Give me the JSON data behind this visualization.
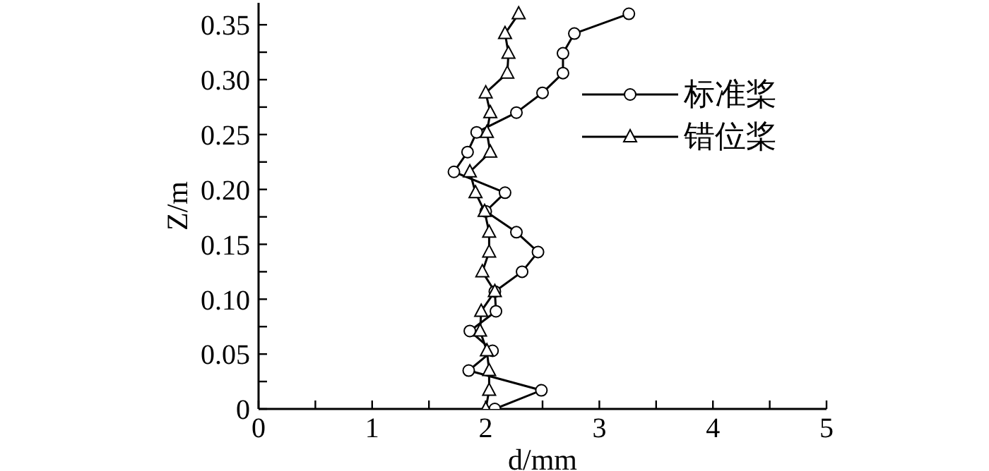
{
  "chart_data": {
    "type": "line",
    "xlabel": "d/mm",
    "ylabel": "Z/m",
    "xlim": [
      0,
      5
    ],
    "xticks": [
      0,
      {
        "value": 0.5,
        "label": null
      },
      1,
      {
        "value": 1.5,
        "label": null
      },
      2,
      {
        "value": 2.5,
        "label": null
      },
      3,
      {
        "value": 3.5,
        "label": null
      },
      4,
      {
        "value": 4.5,
        "label": null
      },
      5
    ],
    "ylim": [
      0,
      0.37
    ],
    "yticks": [
      0,
      {
        "value": 0.025,
        "label": null
      },
      {
        "value": 0.05,
        "label": "0.05"
      },
      {
        "value": 0.075,
        "label": null
      },
      {
        "value": 0.1,
        "label": "0.10"
      },
      {
        "value": 0.125,
        "label": null
      },
      {
        "value": 0.15,
        "label": "0.15"
      },
      {
        "value": 0.175,
        "label": null
      },
      {
        "value": 0.2,
        "label": "0.20"
      },
      {
        "value": 0.225,
        "label": null
      },
      {
        "value": 0.25,
        "label": "0.25"
      },
      {
        "value": 0.275,
        "label": null
      },
      {
        "value": 0.3,
        "label": "0.30"
      },
      {
        "value": 0.325,
        "label": null
      },
      {
        "value": 0.35,
        "label": "0.35"
      }
    ],
    "grid": false,
    "legend": "top right",
    "line_style": "solid",
    "series": [
      {
        "name": "标准桨",
        "color": "#000000",
        "marker": "circle",
        "x": [
          2.08,
          2.49,
          1.85,
          2.06,
          1.86,
          2.09,
          2.08,
          2.32,
          2.46,
          2.27,
          2.0,
          2.17,
          1.72,
          1.84,
          1.92,
          2.27,
          2.5,
          2.68,
          2.68,
          2.78,
          3.26
        ],
        "values": [
          0,
          0.017,
          0.035,
          0.053,
          0.071,
          0.089,
          0.107,
          0.125,
          0.143,
          0.161,
          0.18,
          0.197,
          0.216,
          0.234,
          0.252,
          0.27,
          0.288,
          0.306,
          0.324,
          0.342,
          0.36
        ]
      },
      {
        "name": "错位桨",
        "color": "#000000",
        "marker": "triangle",
        "x": [
          2.0,
          2.03,
          2.03,
          2.01,
          1.95,
          1.96,
          2.08,
          1.97,
          2.03,
          2.03,
          1.99,
          1.91,
          1.86,
          2.04,
          2.01,
          2.04,
          2.0,
          2.19,
          2.2,
          2.17,
          2.29
        ],
        "values": [
          0,
          0.017,
          0.035,
          0.053,
          0.071,
          0.089,
          0.107,
          0.125,
          0.143,
          0.161,
          0.18,
          0.197,
          0.216,
          0.234,
          0.252,
          0.27,
          0.288,
          0.306,
          0.324,
          0.342,
          0.36
        ]
      }
    ]
  }
}
